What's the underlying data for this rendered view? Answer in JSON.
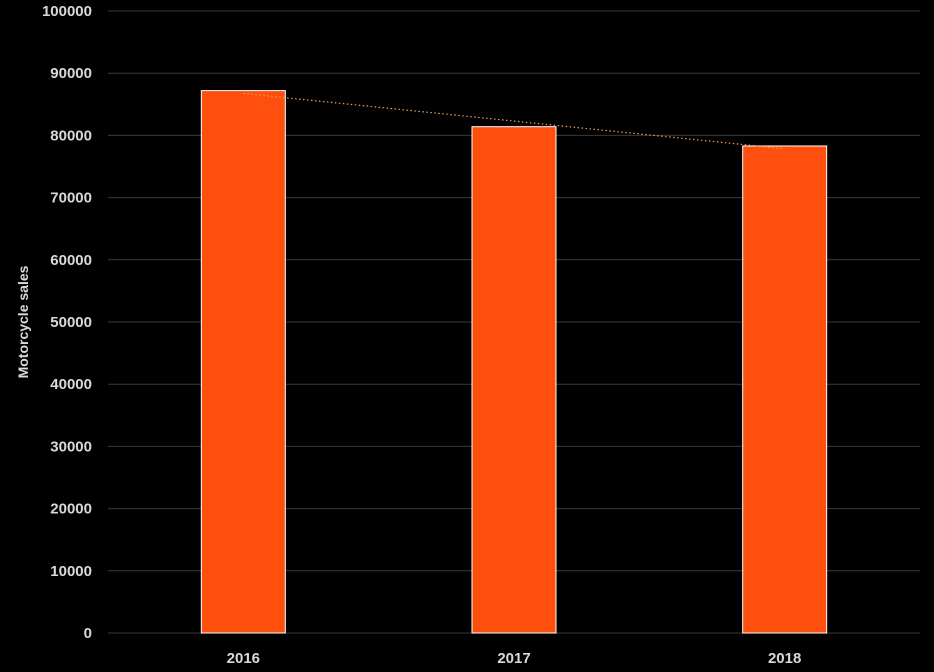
{
  "chart_data": {
    "type": "bar",
    "categories": [
      "2016",
      "2017",
      "2018"
    ],
    "values": [
      87200,
      81400,
      78300
    ],
    "title": "",
    "xlabel": "",
    "ylabel": "Motorcycle sales",
    "ylim": [
      0,
      100000
    ],
    "yticks": [
      "0",
      "10000",
      "20000",
      "30000",
      "40000",
      "50000",
      "60000",
      "70000",
      "80000",
      "90000",
      "100000"
    ],
    "grid": true,
    "trendline": "linear",
    "colors": {
      "bar": "#ff4f0f",
      "bar_border": "#ffffff",
      "trendline": "#e8a060",
      "gridline": "#3a3a3a",
      "text": "#d9d9d9",
      "background": "#000000"
    }
  }
}
